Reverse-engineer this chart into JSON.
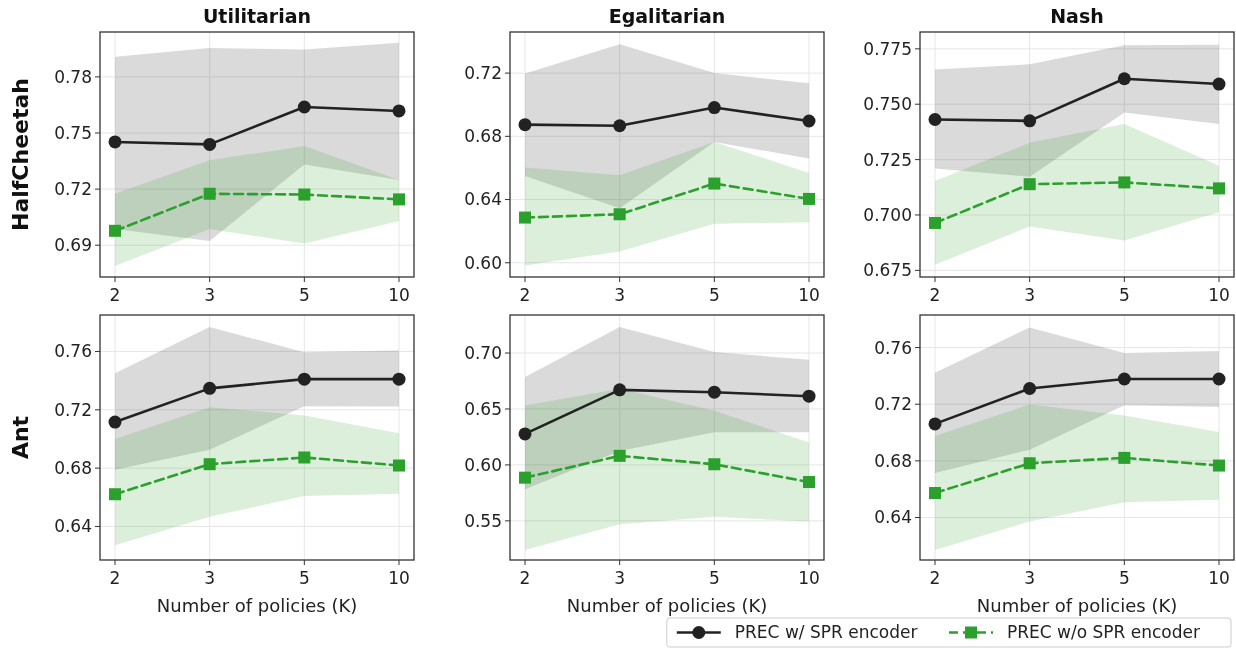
{
  "chart_data": [
    {
      "type": "line",
      "title": "Utilitarian",
      "ylabel": "HalfCheetah",
      "categories": [
        "2",
        "3",
        "5",
        "10"
      ],
      "ylim": [
        0.673,
        0.804
      ],
      "yticks": [
        0.69,
        0.72,
        0.75,
        0.78
      ],
      "grid": true,
      "series": [
        {
          "color": "#222222",
          "marker": "circle",
          "line_style": "solid",
          "values": [
            0.7452,
            0.7439,
            0.7639,
            0.7618
          ],
          "lower": [
            0.6986,
            0.6923,
            0.7332,
            0.7248
          ],
          "upper": [
            0.7907,
            0.7955,
            0.7946,
            0.7982
          ]
        },
        {
          "color": "#2ca02c",
          "marker": "square",
          "line_style": "dashed",
          "values": [
            0.6977,
            0.7175,
            0.7171,
            0.7145
          ],
          "lower": [
            0.6789,
            0.6986,
            0.6909,
            0.703
          ],
          "upper": [
            0.7175,
            0.7354,
            0.743,
            0.7248
          ]
        }
      ]
    },
    {
      "type": "line",
      "title": "Egalitarian",
      "categories": [
        "2",
        "3",
        "5",
        "10"
      ],
      "ylim": [
        0.591,
        0.746
      ],
      "yticks": [
        {
          "value": 0.6,
          "label": "0.60"
        },
        0.64,
        0.68,
        0.72
      ],
      "grid": true,
      "series": [
        {
          "color": "#222222",
          "marker": "circle",
          "line_style": "solid",
          "values": [
            0.6874,
            0.6867,
            0.6982,
            0.6897
          ],
          "lower": [
            0.6549,
            0.6345,
            0.6764,
            0.6659
          ],
          "upper": [
            0.7198,
            0.7383,
            0.72,
            0.7135
          ]
        },
        {
          "color": "#2ca02c",
          "marker": "square",
          "line_style": "dashed",
          "values": [
            0.6286,
            0.6307,
            0.6501,
            0.6404
          ],
          "lower": [
            0.5983,
            0.6072,
            0.6247,
            0.6257
          ],
          "upper": [
            0.6602,
            0.6554,
            0.6764,
            0.6568
          ]
        }
      ]
    },
    {
      "type": "line",
      "title": "Nash",
      "categories": [
        "2",
        "3",
        "5",
        "10"
      ],
      "ylim": [
        0.672,
        0.7826
      ],
      "yticks": [
        0.675,
        {
          "value": 0.7,
          "label": "0.700"
        },
        0.725,
        {
          "value": 0.75,
          "label": "0.750"
        },
        0.775
      ],
      "grid": true,
      "series": [
        {
          "color": "#222222",
          "marker": "circle",
          "line_style": "solid",
          "values": [
            0.7431,
            0.7425,
            0.7615,
            0.7591
          ],
          "lower": [
            0.721,
            0.7172,
            0.7463,
            0.7411
          ],
          "upper": [
            0.7657,
            0.768,
            0.7766,
            0.7769
          ]
        },
        {
          "color": "#2ca02c",
          "marker": "square",
          "line_style": "dashed",
          "values": [
            0.6964,
            0.7139,
            0.7147,
            0.712
          ],
          "lower": [
            0.6775,
            0.6948,
            0.6885,
            0.7012
          ],
          "upper": [
            0.7153,
            0.7326,
            0.7411,
            0.7222
          ]
        }
      ]
    },
    {
      "type": "line",
      "ylabel": "Ant",
      "xlabel": "Number of policies (K)",
      "categories": [
        "2",
        "3",
        "5",
        "10"
      ],
      "ylim": [
        0.617,
        0.785
      ],
      "yticks": [
        0.64,
        0.68,
        0.72,
        0.76
      ],
      "grid": true,
      "series": [
        {
          "color": "#222222",
          "marker": "circle",
          "line_style": "solid",
          "values": [
            0.7116,
            0.7347,
            0.741,
            0.741
          ],
          "lower": [
            0.6789,
            0.6926,
            0.7225,
            0.7223
          ],
          "upper": [
            0.7451,
            0.7767,
            0.7595,
            0.7607
          ]
        },
        {
          "color": "#2ca02c",
          "marker": "square",
          "line_style": "dashed",
          "values": [
            0.6621,
            0.6827,
            0.6873,
            0.6818
          ],
          "lower": [
            0.6271,
            0.6466,
            0.6609,
            0.6625
          ],
          "upper": [
            0.6999,
            0.7218,
            0.7161,
            0.7039
          ]
        }
      ]
    },
    {
      "type": "line",
      "xlabel": "Number of policies (K)",
      "categories": [
        "2",
        "3",
        "5",
        "10"
      ],
      "ylim": [
        0.515,
        0.734
      ],
      "yticks": [
        0.55,
        {
          "value": 0.6,
          "label": "0.60"
        },
        0.65,
        {
          "value": 0.7,
          "label": "0.70"
        }
      ],
      "grid": true,
      "series": [
        {
          "color": "#222222",
          "marker": "circle",
          "line_style": "solid",
          "values": [
            0.6277,
            0.6671,
            0.665,
            0.6614
          ],
          "lower": [
            0.5782,
            0.6125,
            0.6291,
            0.6291
          ],
          "upper": [
            0.6785,
            0.7233,
            0.7009,
            0.694
          ]
        },
        {
          "color": "#2ca02c",
          "marker": "square",
          "line_style": "dashed",
          "values": [
            0.5886,
            0.6081,
            0.6006,
            0.5847
          ],
          "lower": [
            0.5239,
            0.5469,
            0.5536,
            0.5494
          ],
          "upper": [
            0.653,
            0.668,
            0.6485,
            0.6201
          ]
        }
      ]
    },
    {
      "type": "line",
      "xlabel": "Number of policies (K)",
      "categories": [
        "2",
        "3",
        "5",
        "10"
      ],
      "ylim": [
        0.61,
        0.783
      ],
      "yticks": [
        0.64,
        0.68,
        0.72,
        0.76
      ],
      "grid": true,
      "legend": "bottom",
      "series": [
        {
          "name": "PREC w/ SPR encoder",
          "color": "#222222",
          "marker": "circle",
          "line_style": "solid",
          "values": [
            0.7061,
            0.7311,
            0.7378,
            0.7378
          ],
          "lower": [
            0.6715,
            0.6879,
            0.7193,
            0.7181
          ],
          "upper": [
            0.7423,
            0.7742,
            0.7562,
            0.7576
          ]
        },
        {
          "name": "PREC w/o SPR encoder",
          "color": "#2ca02c",
          "marker": "square",
          "line_style": "dashed",
          "values": [
            0.6573,
            0.6783,
            0.6821,
            0.6767
          ],
          "lower": [
            0.6171,
            0.6372,
            0.6507,
            0.6526
          ],
          "upper": [
            0.6975,
            0.7198,
            0.7121,
            0.7003
          ]
        }
      ]
    }
  ]
}
